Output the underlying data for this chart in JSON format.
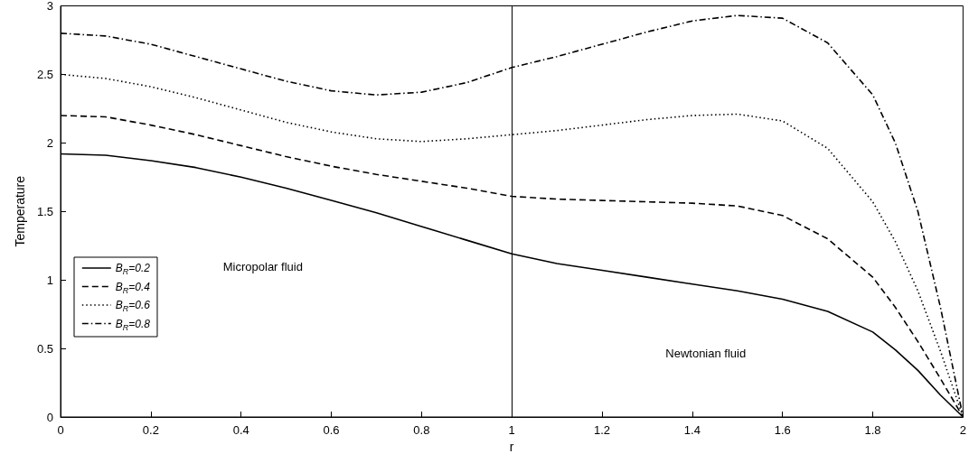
{
  "chart_data": {
    "type": "line",
    "xlabel": "r",
    "ylabel": "Temperature",
    "x": [
      0,
      0.1,
      0.2,
      0.3,
      0.4,
      0.5,
      0.6,
      0.7,
      0.8,
      0.9,
      1.0,
      1.1,
      1.2,
      1.3,
      1.4,
      1.5,
      1.6,
      1.7,
      1.8,
      1.85,
      1.9,
      1.95,
      2.0
    ],
    "series": [
      {
        "name": "B$_{R}$=0.2",
        "color": "#000000",
        "line_style": "solid",
        "values": [
          1.92,
          1.91,
          1.87,
          1.82,
          1.75,
          1.67,
          1.58,
          1.49,
          1.39,
          1.29,
          1.19,
          1.12,
          1.07,
          1.02,
          0.97,
          0.92,
          0.86,
          0.77,
          0.62,
          0.49,
          0.34,
          0.16,
          0
        ]
      },
      {
        "name": "B$_{R}$=0.4",
        "color": "#000000",
        "line_style": "dashed",
        "values": [
          2.2,
          2.19,
          2.13,
          2.06,
          1.98,
          1.9,
          1.83,
          1.77,
          1.72,
          1.67,
          1.61,
          1.59,
          1.58,
          1.57,
          1.56,
          1.54,
          1.47,
          1.3,
          1.02,
          0.8,
          0.55,
          0.28,
          0
        ]
      },
      {
        "name": "B$_{R}$=0.6",
        "color": "#000000",
        "line_style": "dotted",
        "values": [
          2.5,
          2.47,
          2.41,
          2.33,
          2.24,
          2.15,
          2.08,
          2.03,
          2.01,
          2.03,
          2.06,
          2.09,
          2.13,
          2.17,
          2.2,
          2.21,
          2.16,
          1.96,
          1.57,
          1.28,
          0.92,
          0.48,
          0
        ]
      },
      {
        "name": "B$_{R}$=0.8",
        "color": "#000000",
        "line_style": "dashdot",
        "values": [
          2.8,
          2.78,
          2.72,
          2.63,
          2.54,
          2.45,
          2.38,
          2.35,
          2.37,
          2.44,
          2.55,
          2.63,
          2.72,
          2.81,
          2.89,
          2.93,
          2.91,
          2.73,
          2.35,
          2.0,
          1.5,
          0.8,
          0
        ]
      }
    ],
    "xlim": [
      0,
      2
    ],
    "xticks": [
      0,
      0.2,
      0.4,
      0.6,
      0.8,
      1,
      1.2,
      1.4,
      1.6,
      1.8,
      2
    ],
    "ylim": [
      0,
      3
    ],
    "yticks": [
      0,
      0.5,
      1,
      1.5,
      2,
      2.5,
      3
    ],
    "ref_lines": [
      {
        "axis": "x",
        "value": 1,
        "color": "#000000",
        "line_style": "solid"
      }
    ],
    "annotations": [
      "Micropolar fluid",
      "Newtonian fluid"
    ],
    "grid": false,
    "legend": "left",
    "marker": "none"
  }
}
